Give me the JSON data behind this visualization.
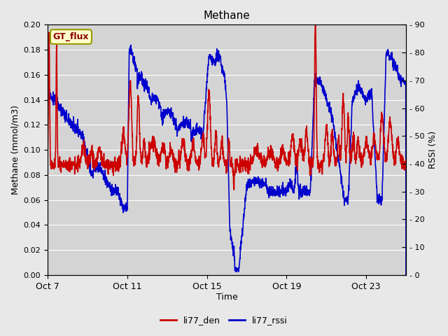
{
  "title": "Methane",
  "xlabel": "Time",
  "ylabel_left": "Methane (mmol/m3)",
  "ylabel_right": "RSSI (%)",
  "ylim_left": [
    0.0,
    0.2
  ],
  "ylim_right": [
    0,
    90
  ],
  "yticks_left": [
    0.0,
    0.02,
    0.04,
    0.06,
    0.08,
    0.1,
    0.12,
    0.14,
    0.16,
    0.18,
    0.2
  ],
  "yticks_right": [
    0,
    10,
    20,
    30,
    40,
    50,
    60,
    70,
    80,
    90
  ],
  "xtick_labels": [
    "Oct 7",
    "Oct 11",
    "Oct 15",
    "Oct 19",
    "Oct 23"
  ],
  "color_den": "#cc0000",
  "color_rssi": "#0000cc",
  "legend_labels": [
    "li77_den",
    "li77_rssi"
  ],
  "fig_bg_color": "#e8e8e8",
  "plot_bg_color": "#d4d4d4",
  "plot_bg_upper": "#c8c8c8",
  "grid_color": "#ffffff",
  "annotation_text": "GT_flux",
  "annotation_bg": "#ffffcc",
  "annotation_border": "#999900",
  "linewidth": 1.2
}
